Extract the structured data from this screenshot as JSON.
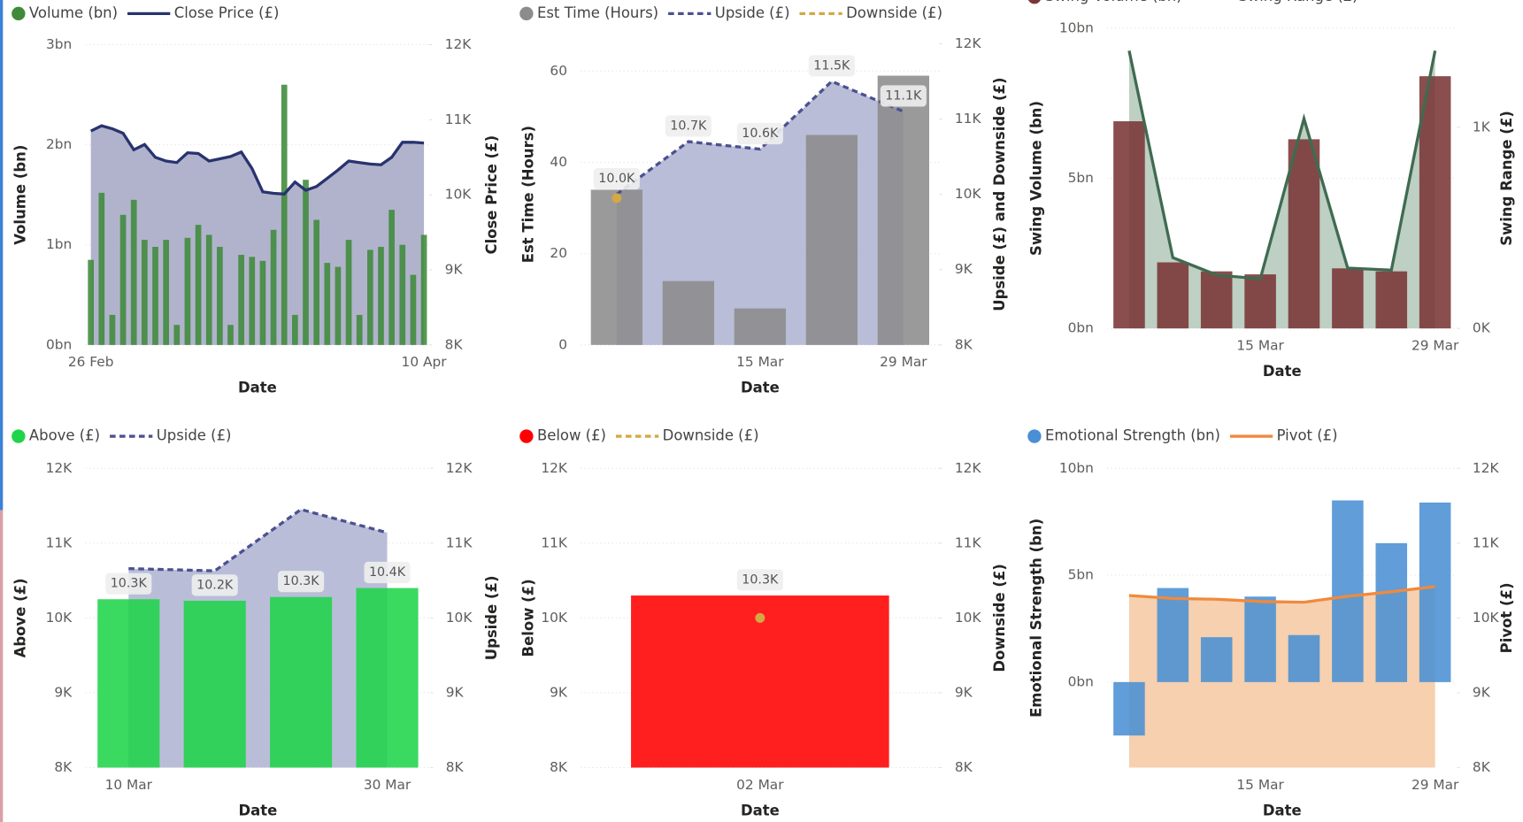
{
  "chart_data": [
    {
      "type": "combo",
      "x_label": "Date",
      "y_label": "Volume (bn)",
      "y2_label": "Close Price (£)",
      "grid": true,
      "categories": [
        "26 Feb",
        null,
        null,
        null,
        null,
        null,
        null,
        null,
        null,
        null,
        null,
        null,
        null,
        null,
        null,
        null,
        null,
        null,
        null,
        null,
        null,
        null,
        null,
        null,
        null,
        null,
        null,
        null,
        null,
        null,
        null,
        "10 Apr"
      ],
      "ylim": [
        0,
        3
      ],
      "yticks": [
        {
          "value": 0,
          "label": "0bn"
        },
        {
          "value": 1,
          "label": "1bn"
        },
        {
          "value": 2,
          "label": "2bn"
        },
        {
          "value": 3,
          "label": "3bn"
        }
      ],
      "y2lim": [
        8000,
        12000
      ],
      "y2ticks": [
        {
          "value": 8000,
          "label": "8K"
        },
        {
          "value": 9000,
          "label": "9K"
        },
        {
          "value": 10000,
          "label": "10K"
        },
        {
          "value": 11000,
          "label": "11K"
        },
        {
          "value": 12000,
          "label": "12K"
        }
      ],
      "series": [
        {
          "name": "Volume (bn)",
          "kind": "bar",
          "color": "#3f8a3a",
          "values": [
            0.85,
            1.52,
            0.3,
            1.3,
            1.45,
            1.05,
            0.98,
            1.05,
            0.2,
            1.07,
            1.2,
            1.1,
            0.98,
            0.2,
            0.9,
            0.88,
            0.84,
            1.15,
            2.6,
            0.3,
            1.65,
            1.25,
            0.82,
            0.78,
            1.05,
            0.3,
            0.95,
            0.98,
            1.35,
            1.0,
            0.7,
            1.1
          ]
        },
        {
          "name": "Close Price (£)",
          "kind": "line",
          "axis": "y2",
          "area": true,
          "color": "#28336e",
          "area_color": "#a8abc6",
          "values": [
            10850,
            10920,
            10880,
            10820,
            10600,
            10670,
            10500,
            10450,
            10430,
            10560,
            10550,
            10450,
            10480,
            10510,
            10570,
            10350,
            10040,
            10020,
            10010,
            10170,
            10060,
            10110,
            10220,
            10330,
            10450,
            10430,
            10410,
            10400,
            10500,
            10700,
            10700,
            10690
          ]
        }
      ]
    },
    {
      "type": "combo",
      "x_label": "Date",
      "y_label": "Est Time (Hours)",
      "y2_label": "Upside (£) and Downside (£)",
      "grid": true,
      "categories": [
        null,
        null,
        "15 Mar",
        null,
        "29 Mar"
      ],
      "ylim": [
        0,
        66
      ],
      "yticks": [
        0,
        20,
        40,
        60
      ],
      "y2lim": [
        8000,
        12000
      ],
      "y2ticks": [
        {
          "value": 8000,
          "label": "8K"
        },
        {
          "value": 9000,
          "label": "9K"
        },
        {
          "value": 10000,
          "label": "10K"
        },
        {
          "value": 11000,
          "label": "11K"
        },
        {
          "value": 12000,
          "label": "12K"
        }
      ],
      "series": [
        {
          "name": "Est Time (Hours)",
          "kind": "bar",
          "color": "#8c8c8c",
          "values": [
            34,
            14,
            8,
            46,
            59
          ]
        },
        {
          "name": "Upside (£)",
          "kind": "line",
          "dashed": true,
          "axis": "y2",
          "area": true,
          "color": "#4b5190",
          "area_color": "#b3b6d4",
          "values": [
            10000,
            10700,
            10600,
            11500,
            11100
          ],
          "value_labels": [
            "10.0K",
            "10.7K",
            "10.6K",
            "11.5K",
            "11.1K"
          ]
        },
        {
          "name": "Downside (£)",
          "kind": "dot",
          "dashed": true,
          "axis": "y2",
          "color": "#d4a843",
          "values": [
            9950,
            null,
            null,
            null,
            null
          ]
        }
      ]
    },
    {
      "type": "combo",
      "x_label": "Date",
      "y_label": "Swing Volume (bn)",
      "y2_label": "Swing Range (£)",
      "grid": true,
      "categories": [
        null,
        null,
        null,
        "15 Mar",
        null,
        null,
        null,
        "29 Mar"
      ],
      "ylim": [
        0,
        10
      ],
      "yticks": [
        {
          "value": 0,
          "label": "0bn"
        },
        {
          "value": 5,
          "label": "5bn"
        },
        {
          "value": 10,
          "label": "10bn"
        }
      ],
      "y2lim": [
        0,
        1493
      ],
      "y2ticks": [
        {
          "value": 0,
          "label": "0K"
        },
        {
          "value": 1000,
          "label": "1K"
        }
      ],
      "series": [
        {
          "name": "Swing Volume (bn)",
          "kind": "bar",
          "color": "#7a3535",
          "values": [
            6.9,
            2.2,
            1.9,
            1.8,
            6.3,
            2.0,
            1.9,
            8.4
          ]
        },
        {
          "name": "Swing Range (£)",
          "kind": "line",
          "axis": "y2",
          "area": true,
          "color": "#3f6b50",
          "area_color": "#b7cabd",
          "values": [
            1381,
            352,
            266,
            246,
            1043,
            300,
            290,
            1381
          ]
        }
      ]
    },
    {
      "type": "combo",
      "x_label": "Date",
      "y_label": "Above (£)",
      "y2_label": "Upside (£)",
      "grid": true,
      "categories": [
        "10 Mar",
        null,
        null,
        "30 Mar"
      ],
      "ylim": [
        8000,
        12000
      ],
      "yticks": [
        {
          "value": 8000,
          "label": "8K"
        },
        {
          "value": 9000,
          "label": "9K"
        },
        {
          "value": 10000,
          "label": "10K"
        },
        {
          "value": 11000,
          "label": "11K"
        },
        {
          "value": 12000,
          "label": "12K"
        }
      ],
      "y2lim": [
        8000,
        12000
      ],
      "y2ticks": [
        {
          "value": 8000,
          "label": "8K"
        },
        {
          "value": 9000,
          "label": "9K"
        },
        {
          "value": 10000,
          "label": "10K"
        },
        {
          "value": 11000,
          "label": "11K"
        },
        {
          "value": 12000,
          "label": "12K"
        }
      ],
      "series": [
        {
          "name": "Above (£)",
          "kind": "bar",
          "color": "#1fd44a",
          "values": [
            10250,
            10230,
            10280,
            10400
          ],
          "value_labels": [
            "10.3K",
            "10.2K",
            "10.3K",
            "10.4K"
          ]
        },
        {
          "name": "Upside (£)",
          "kind": "line",
          "dashed": true,
          "axis": "y2",
          "area": true,
          "color": "#4b5190",
          "area_color": "#b3b6d4",
          "values": [
            10660,
            10630,
            11450,
            11140
          ]
        }
      ]
    },
    {
      "type": "combo",
      "x_label": "Date",
      "y_label": "Below (£)",
      "y2_label": "Downside (£)",
      "grid": true,
      "categories": [
        "02 Mar"
      ],
      "ylim": [
        8000,
        12000
      ],
      "yticks": [
        {
          "value": 8000,
          "label": "8K"
        },
        {
          "value": 9000,
          "label": "9K"
        },
        {
          "value": 10000,
          "label": "10K"
        },
        {
          "value": 11000,
          "label": "11K"
        },
        {
          "value": 12000,
          "label": "12K"
        }
      ],
      "y2lim": [
        8000,
        12000
      ],
      "y2ticks": [
        {
          "value": 8000,
          "label": "8K"
        },
        {
          "value": 9000,
          "label": "9K"
        },
        {
          "value": 10000,
          "label": "10K"
        },
        {
          "value": 11000,
          "label": "11K"
        },
        {
          "value": 12000,
          "label": "12K"
        }
      ],
      "series": [
        {
          "name": "Below (£)",
          "kind": "bar",
          "color": "#ff0000",
          "values": [
            10300
          ],
          "value_labels": [
            "10.3K"
          ]
        },
        {
          "name": "Downside (£)",
          "kind": "dot",
          "dashed": true,
          "axis": "y2",
          "color": "#d4a843",
          "values": [
            10000
          ]
        }
      ]
    },
    {
      "type": "combo",
      "x_label": "Date",
      "y_label": "Emotional Strength (bn)",
      "y2_label": "Pivot (£)",
      "grid": true,
      "categories": [
        null,
        null,
        null,
        "15 Mar",
        null,
        null,
        null,
        "29 Mar"
      ],
      "ylim": [
        -4,
        10
      ],
      "yticks": [
        {
          "value": 0,
          "label": "0bn"
        },
        {
          "value": 5,
          "label": "5bn"
        },
        {
          "value": 10,
          "label": "10bn"
        }
      ],
      "y2lim": [
        8000,
        12000
      ],
      "y2ticks": [
        {
          "value": 8000,
          "label": "8K"
        },
        {
          "value": 9000,
          "label": "9K"
        },
        {
          "value": 10000,
          "label": "10K"
        },
        {
          "value": 11000,
          "label": "11K"
        },
        {
          "value": 12000,
          "label": "12K"
        }
      ],
      "series": [
        {
          "name": "Emotional Strength (bn)",
          "kind": "bar",
          "color": "#4a8fd4",
          "values": [
            -2.5,
            4.4,
            2.1,
            4.0,
            2.2,
            8.5,
            6.5,
            8.4
          ]
        },
        {
          "name": "Pivot (£)",
          "kind": "line",
          "axis": "y2",
          "area": true,
          "color": "#f08a3c",
          "area_color": "#f5cba6",
          "values": [
            10300,
            10260,
            10250,
            10220,
            10210,
            10290,
            10350,
            10420
          ]
        }
      ]
    }
  ]
}
